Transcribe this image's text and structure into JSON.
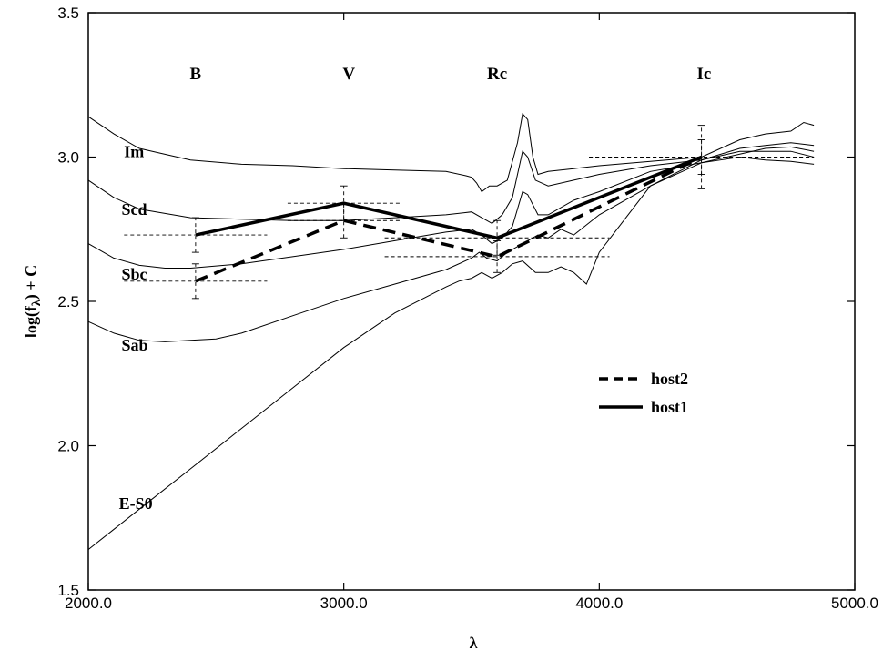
{
  "chart_data": {
    "type": "line",
    "title": "",
    "xlabel": "λ",
    "ylabel_main": "log(f",
    "ylabel_sub": "λ",
    "ylabel_tail": ") + C",
    "xlim": [
      2000,
      5000
    ],
    "ylim": [
      1.5,
      3.5
    ],
    "x_ticks": [
      {
        "value": 2000,
        "label": "2000.0"
      },
      {
        "value": 3000,
        "label": "3000.0"
      },
      {
        "value": 4000,
        "label": "4000.0"
      },
      {
        "value": 5000,
        "label": "5000.0"
      }
    ],
    "y_ticks": [
      {
        "value": 1.5,
        "label": "1.5"
      },
      {
        "value": 2.0,
        "label": "2.0"
      },
      {
        "value": 2.5,
        "label": "2.5"
      },
      {
        "value": 3.0,
        "label": "3.0"
      },
      {
        "value": 3.5,
        "label": "3.5"
      }
    ],
    "grid": false,
    "legend_position": "right-center",
    "band_labels": [
      {
        "text": "B",
        "x": 2420,
        "y": 3.27
      },
      {
        "text": "V",
        "x": 3020,
        "y": 3.27
      },
      {
        "text": "Rc",
        "x": 3600,
        "y": 3.27
      },
      {
        "text": "Ic",
        "x": 4410,
        "y": 3.27
      }
    ],
    "sed_templates": [
      {
        "label": "Im",
        "label_x": 2140,
        "label_y": 3.0,
        "points": [
          [
            2000,
            3.14
          ],
          [
            2100,
            3.08
          ],
          [
            2200,
            3.03
          ],
          [
            2400,
            2.99
          ],
          [
            2600,
            2.975
          ],
          [
            2800,
            2.97
          ],
          [
            3000,
            2.96
          ],
          [
            3200,
            2.955
          ],
          [
            3400,
            2.95
          ],
          [
            3480,
            2.935
          ],
          [
            3500,
            2.93
          ],
          [
            3520,
            2.91
          ],
          [
            3540,
            2.88
          ],
          [
            3570,
            2.9
          ],
          [
            3600,
            2.9
          ],
          [
            3640,
            2.92
          ],
          [
            3680,
            3.05
          ],
          [
            3700,
            3.15
          ],
          [
            3720,
            3.13
          ],
          [
            3740,
            3.0
          ],
          [
            3760,
            2.94
          ],
          [
            3800,
            2.95
          ],
          [
            3900,
            2.96
          ],
          [
            4000,
            2.97
          ],
          [
            4200,
            2.985
          ],
          [
            4400,
            3.0
          ],
          [
            4550,
            3.06
          ],
          [
            4650,
            3.08
          ],
          [
            4750,
            3.09
          ],
          [
            4800,
            3.12
          ],
          [
            4840,
            3.11
          ]
        ]
      },
      {
        "label": "Scd",
        "label_x": 2130,
        "label_y": 2.8,
        "points": [
          [
            2000,
            2.92
          ],
          [
            2100,
            2.86
          ],
          [
            2200,
            2.82
          ],
          [
            2400,
            2.79
          ],
          [
            2600,
            2.785
          ],
          [
            2800,
            2.78
          ],
          [
            3000,
            2.78
          ],
          [
            3200,
            2.79
          ],
          [
            3400,
            2.8
          ],
          [
            3500,
            2.81
          ],
          [
            3540,
            2.79
          ],
          [
            3580,
            2.77
          ],
          [
            3620,
            2.8
          ],
          [
            3660,
            2.86
          ],
          [
            3700,
            3.02
          ],
          [
            3720,
            3.0
          ],
          [
            3750,
            2.92
          ],
          [
            3800,
            2.9
          ],
          [
            3900,
            2.92
          ],
          [
            4000,
            2.94
          ],
          [
            4200,
            2.97
          ],
          [
            4400,
            2.99
          ],
          [
            4550,
            3.03
          ],
          [
            4650,
            3.04
          ],
          [
            4750,
            3.05
          ],
          [
            4840,
            3.04
          ]
        ]
      },
      {
        "label": "Sbc",
        "label_x": 2130,
        "label_y": 2.575,
        "points": [
          [
            2000,
            2.7
          ],
          [
            2100,
            2.65
          ],
          [
            2200,
            2.625
          ],
          [
            2300,
            2.615
          ],
          [
            2400,
            2.615
          ],
          [
            2600,
            2.63
          ],
          [
            2800,
            2.655
          ],
          [
            3000,
            2.68
          ],
          [
            3200,
            2.71
          ],
          [
            3400,
            2.74
          ],
          [
            3500,
            2.75
          ],
          [
            3540,
            2.73
          ],
          [
            3580,
            2.7
          ],
          [
            3620,
            2.72
          ],
          [
            3660,
            2.76
          ],
          [
            3700,
            2.88
          ],
          [
            3720,
            2.87
          ],
          [
            3760,
            2.8
          ],
          [
            3800,
            2.8
          ],
          [
            3900,
            2.85
          ],
          [
            4000,
            2.88
          ],
          [
            4200,
            2.95
          ],
          [
            4400,
            2.98
          ],
          [
            4550,
            3.01
          ],
          [
            4650,
            3.03
          ],
          [
            4750,
            3.035
          ],
          [
            4840,
            3.02
          ]
        ]
      },
      {
        "label": "Sab",
        "label_x": 2130,
        "label_y": 2.33,
        "points": [
          [
            2000,
            2.43
          ],
          [
            2100,
            2.39
          ],
          [
            2200,
            2.365
          ],
          [
            2300,
            2.36
          ],
          [
            2400,
            2.365
          ],
          [
            2500,
            2.37
          ],
          [
            2600,
            2.39
          ],
          [
            2800,
            2.45
          ],
          [
            3000,
            2.51
          ],
          [
            3200,
            2.56
          ],
          [
            3400,
            2.61
          ],
          [
            3500,
            2.65
          ],
          [
            3530,
            2.67
          ],
          [
            3560,
            2.65
          ],
          [
            3600,
            2.64
          ],
          [
            3640,
            2.67
          ],
          [
            3680,
            2.69
          ],
          [
            3720,
            2.71
          ],
          [
            3760,
            2.73
          ],
          [
            3800,
            2.72
          ],
          [
            3850,
            2.75
          ],
          [
            3900,
            2.73
          ],
          [
            4000,
            2.8
          ],
          [
            4200,
            2.9
          ],
          [
            4400,
            2.99
          ],
          [
            4550,
            3.02
          ],
          [
            4650,
            3.02
          ],
          [
            4750,
            3.02
          ],
          [
            4840,
            3.0
          ]
        ]
      },
      {
        "label": "E-S0",
        "label_x": 2120,
        "label_y": 1.78,
        "points": [
          [
            2000,
            1.64
          ],
          [
            2200,
            1.78
          ],
          [
            2400,
            1.92
          ],
          [
            2600,
            2.06
          ],
          [
            2800,
            2.2
          ],
          [
            3000,
            2.34
          ],
          [
            3200,
            2.46
          ],
          [
            3400,
            2.55
          ],
          [
            3450,
            2.57
          ],
          [
            3500,
            2.58
          ],
          [
            3540,
            2.6
          ],
          [
            3580,
            2.58
          ],
          [
            3620,
            2.6
          ],
          [
            3660,
            2.63
          ],
          [
            3700,
            2.64
          ],
          [
            3750,
            2.6
          ],
          [
            3800,
            2.6
          ],
          [
            3850,
            2.62
          ],
          [
            3900,
            2.6
          ],
          [
            3950,
            2.56
          ],
          [
            4000,
            2.67
          ],
          [
            4200,
            2.9
          ],
          [
            4400,
            2.98
          ],
          [
            4550,
            3.0
          ],
          [
            4650,
            2.99
          ],
          [
            4750,
            2.985
          ],
          [
            4840,
            2.975
          ]
        ]
      }
    ],
    "series": [
      {
        "name": "host2",
        "style": "dashed",
        "points": [
          [
            2420,
            2.57
          ],
          [
            3000,
            2.78
          ],
          [
            3600,
            2.655
          ],
          [
            4400,
            3.0
          ]
        ],
        "errors": [
          {
            "x": 2420,
            "y": 2.57,
            "x_lo": 2140,
            "x_hi": 2700,
            "y_lo": 2.51,
            "y_hi": 2.63
          },
          {
            "x": 3000,
            "y": 2.78,
            "x_lo": 2780,
            "x_hi": 3220,
            "y_lo": 2.72,
            "y_hi": 2.84
          },
          {
            "x": 3600,
            "y": 2.655,
            "x_lo": 3160,
            "x_hi": 4040,
            "y_lo": 2.6,
            "y_hi": 2.71
          },
          {
            "x": 4400,
            "y": 3.0,
            "x_lo": 3960,
            "x_hi": 4840,
            "y_lo": 2.89,
            "y_hi": 3.11
          }
        ]
      },
      {
        "name": "host1",
        "style": "solid",
        "points": [
          [
            2420,
            2.73
          ],
          [
            3000,
            2.84
          ],
          [
            3600,
            2.72
          ],
          [
            4400,
            3.0
          ]
        ],
        "errors": [
          {
            "x": 2420,
            "y": 2.73,
            "x_lo": 2140,
            "x_hi": 2700,
            "y_lo": 2.67,
            "y_hi": 2.79
          },
          {
            "x": 3000,
            "y": 2.84,
            "x_lo": 2780,
            "x_hi": 3220,
            "y_lo": 2.78,
            "y_hi": 2.9
          },
          {
            "x": 3600,
            "y": 2.72,
            "x_lo": 3160,
            "x_hi": 4040,
            "y_lo": 2.66,
            "y_hi": 2.78
          },
          {
            "x": 4400,
            "y": 3.0,
            "x_lo": 3960,
            "x_hi": 4840,
            "y_lo": 2.94,
            "y_hi": 3.06
          }
        ]
      }
    ]
  }
}
